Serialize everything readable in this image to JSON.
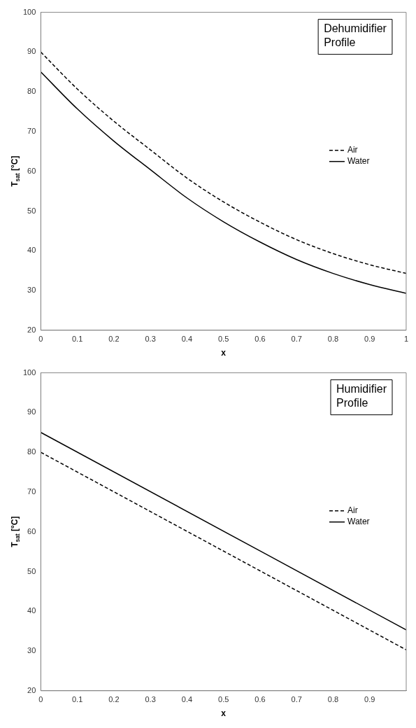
{
  "chart_data": [
    {
      "type": "line",
      "xlabel": "x",
      "ylabel": "T$_{sat}$ [°C]",
      "annotations": [
        "Dehumidifier Profile"
      ],
      "legend": "right",
      "grid": false,
      "marker": "none",
      "xlim": [
        0,
        1
      ],
      "xticks": [
        0,
        0.1,
        0.2,
        0.3,
        0.4,
        0.5,
        0.6,
        0.7,
        0.8,
        0.9,
        1
      ],
      "ylim": [
        20,
        100
      ],
      "yticks": [
        20,
        30,
        40,
        50,
        60,
        70,
        80,
        90,
        100
      ],
      "x": [
        0,
        0.1,
        0.2,
        0.3,
        0.4,
        0.5,
        0.6,
        0.7,
        0.8,
        0.9,
        1
      ],
      "series": [
        {
          "name": "Air",
          "color": "#000000",
          "line_style": "dashed",
          "values": [
            90,
            80.7,
            72.6,
            65.4,
            58.3,
            52.3,
            47.2,
            42.8,
            39.3,
            36.5,
            34.3
          ]
        },
        {
          "name": "Water",
          "color": "#000000",
          "line_style": "solid",
          "values": [
            85,
            75.7,
            67.6,
            60.4,
            53.3,
            47.3,
            42.2,
            37.8,
            34.3,
            31.5,
            29.3
          ]
        }
      ]
    },
    {
      "type": "line",
      "xlabel": "x",
      "ylabel": "T$_{sat}$ [°C]",
      "annotations": [
        "Humidifier Profile"
      ],
      "legend": "right",
      "grid": false,
      "marker": "none",
      "xlim": [
        0,
        1
      ],
      "xticks": [
        0,
        0.1,
        0.2,
        0.3,
        0.4,
        0.5,
        0.6,
        0.7,
        0.8,
        0.9
      ],
      "ylim": [
        20,
        100
      ],
      "yticks": [
        20,
        30,
        40,
        50,
        60,
        70,
        80,
        90,
        100
      ],
      "x": [
        0,
        1
      ],
      "series": [
        {
          "name": "Air",
          "color": "#000000",
          "line_style": "dashed",
          "values": [
            80,
            30.3
          ]
        },
        {
          "name": "Water",
          "color": "#000000",
          "line_style": "solid",
          "values": [
            85,
            35.3
          ]
        }
      ]
    }
  ]
}
